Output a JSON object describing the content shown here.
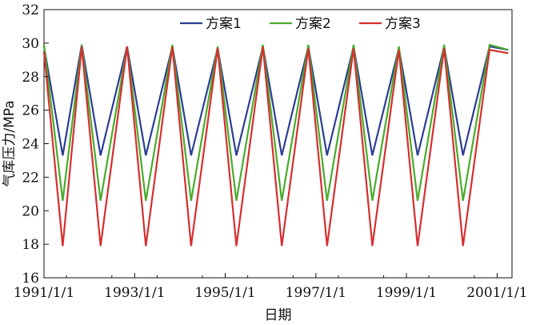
{
  "chart_data": {
    "type": "line",
    "xlabel": "日期",
    "ylabel": "气库压力/MPa",
    "ylim": [
      16,
      32
    ],
    "yticks": [
      16,
      18,
      20,
      22,
      24,
      26,
      28,
      30,
      32
    ],
    "xlim": [
      "1991-01-01",
      "2001-05-01"
    ],
    "xticks": [
      {
        "date": "1991-01-01",
        "label": "1991/1/1"
      },
      {
        "date": "1993-01-01",
        "label": "1993/1/1"
      },
      {
        "date": "1995-01-01",
        "label": "1995/1/1"
      },
      {
        "date": "1997-01-01",
        "label": "1997/1/1"
      },
      {
        "date": "1999-01-01",
        "label": "1999/1/1"
      },
      {
        "date": "2001-01-01",
        "label": "2001/1/1"
      }
    ],
    "grid": false,
    "legend_position": "top-center",
    "series": [
      {
        "name": "方案1",
        "color": "#2c3e93",
        "x": [
          "1991-01-01",
          "1991-06-01",
          "1991-11-01",
          "1992-04-01",
          "1992-11-01",
          "1993-04-01",
          "1993-11-01",
          "1994-04-01",
          "1994-11-01",
          "1995-04-01",
          "1995-11-01",
          "1996-04-01",
          "1996-11-01",
          "1997-04-01",
          "1997-11-01",
          "1998-04-01",
          "1998-11-01",
          "1999-04-01",
          "1999-11-01",
          "2000-04-01",
          "2000-11-01",
          "2001-04-01"
        ],
        "values": [
          29.8,
          23.3,
          29.9,
          23.3,
          29.8,
          23.3,
          29.8,
          23.3,
          29.7,
          23.3,
          29.8,
          23.3,
          29.8,
          23.3,
          29.8,
          23.3,
          29.7,
          23.3,
          29.8,
          23.3,
          29.8,
          29.6
        ]
      },
      {
        "name": "方案2",
        "color": "#4aab2c",
        "x": [
          "1991-01-01",
          "1991-06-01",
          "1991-11-01",
          "1992-04-01",
          "1992-11-01",
          "1993-04-01",
          "1993-11-01",
          "1994-04-01",
          "1994-11-01",
          "1995-04-01",
          "1995-11-01",
          "1996-04-01",
          "1996-11-01",
          "1997-04-01",
          "1997-11-01",
          "1998-04-01",
          "1998-11-01",
          "1999-04-01",
          "1999-11-01",
          "2000-04-01",
          "2000-11-01",
          "2001-04-01"
        ],
        "values": [
          29.9,
          20.6,
          29.9,
          20.6,
          29.8,
          20.6,
          29.9,
          20.6,
          29.8,
          20.6,
          29.9,
          20.6,
          29.9,
          20.6,
          29.9,
          20.6,
          29.8,
          20.6,
          29.9,
          20.6,
          29.9,
          29.6
        ]
      },
      {
        "name": "方案3",
        "color": "#d62f2f",
        "x": [
          "1991-01-01",
          "1991-06-01",
          "1991-11-01",
          "1992-04-01",
          "1992-11-01",
          "1993-04-01",
          "1993-11-01",
          "1994-04-01",
          "1994-11-01",
          "1995-04-01",
          "1995-11-01",
          "1996-04-01",
          "1996-11-01",
          "1997-04-01",
          "1997-11-01",
          "1998-04-01",
          "1998-11-01",
          "1999-04-01",
          "1999-11-01",
          "2000-04-01",
          "2000-11-01",
          "2001-04-01"
        ],
        "values": [
          29.5,
          17.9,
          29.8,
          17.9,
          29.8,
          17.9,
          29.8,
          17.9,
          29.7,
          17.9,
          29.8,
          17.9,
          29.7,
          17.9,
          29.7,
          17.9,
          29.6,
          17.9,
          29.7,
          17.9,
          29.6,
          29.4
        ]
      }
    ]
  }
}
